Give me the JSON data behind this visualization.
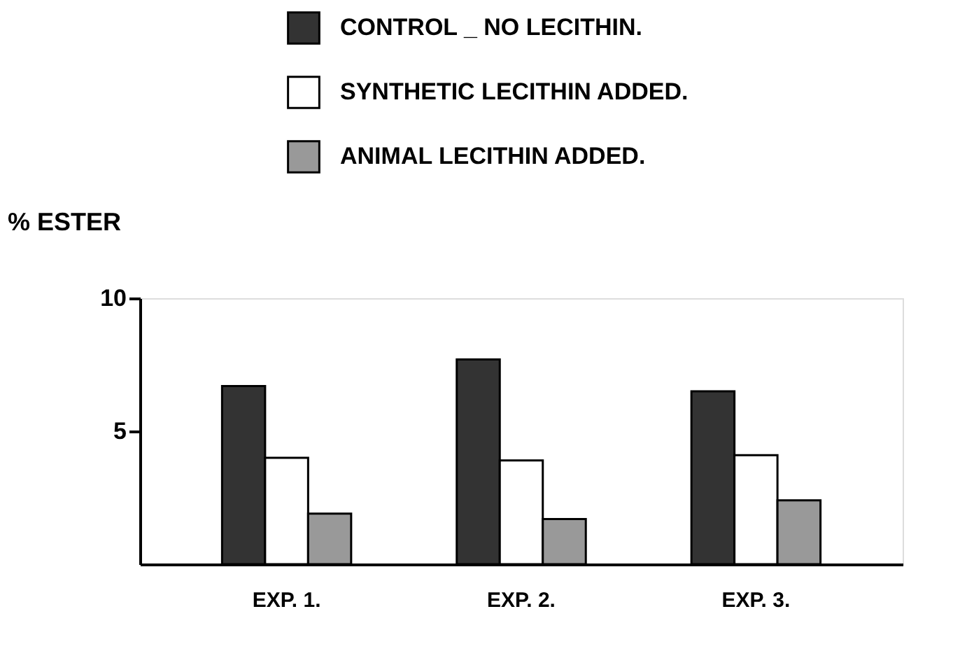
{
  "chart_data": {
    "type": "bar",
    "ylabel": "% ESTER",
    "categories": [
      "EXP. 1.",
      "EXP. 2.",
      "EXP. 3."
    ],
    "series": [
      {
        "name": "CONTROL _ NO LECITHIN.",
        "color": "#333333",
        "values": [
          6.7,
          7.7,
          6.5
        ]
      },
      {
        "name": "SYNTHETIC LECITHIN ADDED.",
        "color": "#ffffff",
        "values": [
          4.0,
          3.9,
          4.1
        ]
      },
      {
        "name": "ANIMAL LECITHIN ADDED.",
        "color": "#999999",
        "values": [
          1.9,
          1.7,
          2.4
        ]
      }
    ],
    "ylim": [
      0,
      10
    ],
    "yticks": [
      5,
      10
    ],
    "grid": false,
    "legend": "top"
  }
}
